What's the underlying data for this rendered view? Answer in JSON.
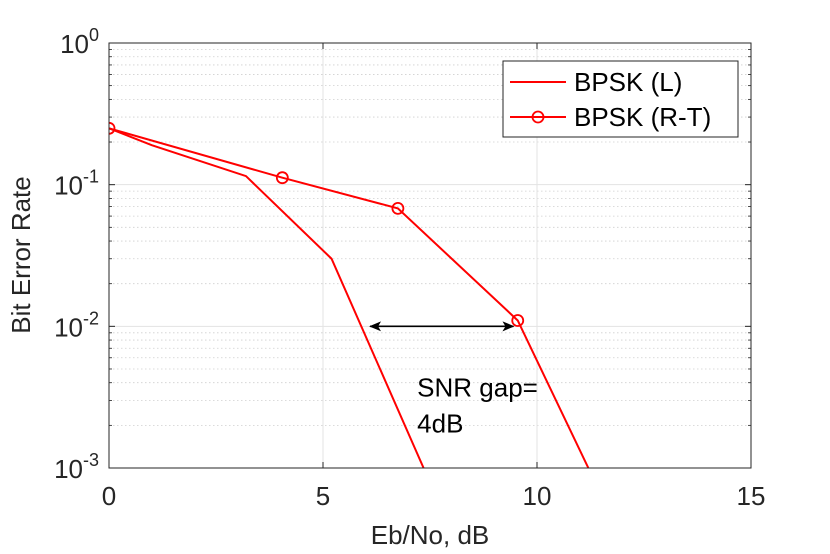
{
  "chart_data": {
    "type": "line",
    "xlabel": "Eb/No, dB",
    "ylabel": "Bit Error Rate",
    "xlim": [
      0,
      15
    ],
    "ylim": [
      0.001,
      1
    ],
    "yscale": "log",
    "grid": true,
    "minor_grid": true,
    "legend_position": "top-right",
    "xticks": [
      {
        "value": 0,
        "label": "0"
      },
      {
        "value": 5,
        "label": "5"
      },
      {
        "value": 10,
        "label": "10"
      },
      {
        "value": 15,
        "label": "15"
      }
    ],
    "yticks": [
      {
        "value": 1,
        "base": "10",
        "exp": "0"
      },
      {
        "value": 0.1,
        "base": "10",
        "exp": "-1"
      },
      {
        "value": 0.01,
        "base": "10",
        "exp": "-2"
      },
      {
        "value": 0.001,
        "base": "10",
        "exp": "-3"
      }
    ],
    "series": [
      {
        "name": "BPSK (L)",
        "color": "#ff0000",
        "marker": "none",
        "x": [
          0,
          1.0,
          3.2,
          5.2,
          7.35
        ],
        "y": [
          0.25,
          0.19,
          0.115,
          0.03,
          0.001
        ]
      },
      {
        "name": "BPSK (R-T)",
        "color": "#ff0000",
        "marker": "circle",
        "x": [
          0,
          4.05,
          6.75,
          9.55,
          11.2
        ],
        "y": [
          0.25,
          0.112,
          0.068,
          0.011,
          0.001
        ]
      }
    ],
    "annotations": [
      {
        "type": "double-arrow",
        "x_start": 6.1,
        "x_end": 9.45,
        "y": 0.01,
        "color": "#000000"
      },
      {
        "type": "text",
        "lines": [
          "SNR gap=",
          "4dB"
        ],
        "x": 7.2,
        "y": 0.0032
      }
    ]
  }
}
